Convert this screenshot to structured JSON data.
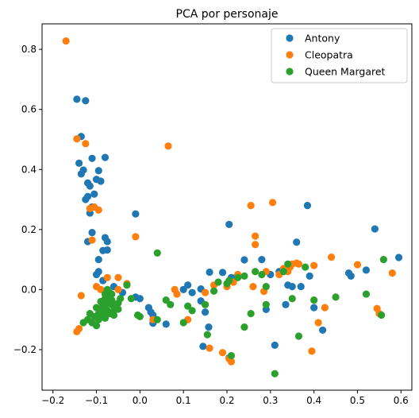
{
  "chart_data": {
    "type": "scatter",
    "title": "PCA por personaje",
    "xlabel": "",
    "ylabel": "",
    "xlim": [
      -0.225,
      0.625
    ],
    "ylim": [
      -0.335,
      0.885
    ],
    "xticks": [
      -0.2,
      -0.1,
      0.0,
      0.1,
      0.2,
      0.3,
      0.4,
      0.5,
      0.6
    ],
    "xtick_labels": [
      "−0.2",
      "−0.1",
      "0.0",
      "0.1",
      "0.2",
      "0.3",
      "0.4",
      "0.5",
      "0.6"
    ],
    "yticks": [
      -0.2,
      0.0,
      0.2,
      0.4,
      0.6,
      0.8
    ],
    "ytick_labels": [
      "−0.2",
      "0.0",
      "0.2",
      "0.4",
      "0.6",
      "0.8"
    ],
    "grid": false,
    "legend_position": "top-right",
    "series": [
      {
        "name": "Antony",
        "color": "#1f77b4",
        "points": [
          [
            -0.145,
            0.634
          ],
          [
            -0.125,
            0.629
          ],
          [
            -0.135,
            0.51
          ],
          [
            -0.14,
            0.421
          ],
          [
            -0.13,
            0.398
          ],
          [
            -0.135,
            0.385
          ],
          [
            -0.11,
            0.437
          ],
          [
            -0.095,
            0.396
          ],
          [
            -0.08,
            0.44
          ],
          [
            -0.1,
            0.367
          ],
          [
            -0.09,
            0.361
          ],
          [
            -0.12,
            0.355
          ],
          [
            -0.115,
            0.345
          ],
          [
            -0.125,
            0.3
          ],
          [
            -0.12,
            0.31
          ],
          [
            -0.105,
            0.318
          ],
          [
            -0.11,
            0.275
          ],
          [
            -0.115,
            0.255
          ],
          [
            -0.01,
            0.252
          ],
          [
            -0.11,
            0.19
          ],
          [
            -0.12,
            0.16
          ],
          [
            -0.08,
            0.173
          ],
          [
            -0.075,
            0.16
          ],
          [
            -0.085,
            0.13
          ],
          [
            -0.075,
            0.132
          ],
          [
            -0.095,
            0.1
          ],
          [
            -0.095,
            0.06
          ],
          [
            -0.1,
            0.05
          ],
          [
            -0.085,
            0.03
          ],
          [
            -0.06,
            0.01
          ],
          [
            -0.04,
            -0.01
          ],
          [
            -0.01,
            -0.025
          ],
          [
            0.0,
            -0.03
          ],
          [
            0.02,
            -0.06
          ],
          [
            0.025,
            -0.075
          ],
          [
            0.03,
            -0.085
          ],
          [
            0.03,
            -0.112
          ],
          [
            0.06,
            -0.115
          ],
          [
            0.1,
            0.0
          ],
          [
            0.11,
            0.015
          ],
          [
            0.12,
            -0.01
          ],
          [
            0.14,
            0.002
          ],
          [
            0.14,
            -0.038
          ],
          [
            0.15,
            -0.075
          ],
          [
            0.145,
            -0.189
          ],
          [
            0.158,
            -0.125
          ],
          [
            0.16,
            0.058
          ],
          [
            0.19,
            0.057
          ],
          [
            0.205,
            0.217
          ],
          [
            0.21,
            0.04
          ],
          [
            0.205,
            -0.227
          ],
          [
            0.22,
            0.04
          ],
          [
            0.24,
            0.099
          ],
          [
            0.28,
            0.1
          ],
          [
            0.29,
            -0.066
          ],
          [
            0.3,
            0.05
          ],
          [
            0.31,
            -0.185
          ],
          [
            0.32,
            0.06
          ],
          [
            0.335,
            -0.05
          ],
          [
            0.34,
            0.015
          ],
          [
            0.35,
            0.01
          ],
          [
            0.36,
            0.158
          ],
          [
            0.37,
            0.01
          ],
          [
            0.385,
            0.28
          ],
          [
            0.39,
            0.045
          ],
          [
            0.4,
            -0.06
          ],
          [
            0.42,
            -0.135
          ],
          [
            0.48,
            0.055
          ],
          [
            0.485,
            0.045
          ],
          [
            0.52,
            0.065
          ],
          [
            0.54,
            0.202
          ],
          [
            0.595,
            0.107
          ]
        ]
      },
      {
        "name": "Cleopatra",
        "color": "#ff7f0e",
        "points": [
          [
            -0.17,
            0.828
          ],
          [
            -0.145,
            0.502
          ],
          [
            -0.125,
            0.486
          ],
          [
            -0.105,
            0.275
          ],
          [
            -0.095,
            0.265
          ],
          [
            -0.115,
            0.27
          ],
          [
            -0.11,
            0.165
          ],
          [
            -0.01,
            0.176
          ],
          [
            0.065,
            0.478
          ],
          [
            -0.135,
            -0.02
          ],
          [
            -0.145,
            -0.14
          ],
          [
            -0.14,
            -0.13
          ],
          [
            -0.1,
            0.01
          ],
          [
            -0.09,
            0.0
          ],
          [
            -0.075,
            0.04
          ],
          [
            -0.05,
            0.0
          ],
          [
            -0.03,
            0.02
          ],
          [
            -0.055,
            -0.05
          ],
          [
            -0.05,
            0.04
          ],
          [
            0.03,
            -0.1
          ],
          [
            0.08,
            0.0
          ],
          [
            0.085,
            -0.015
          ],
          [
            0.11,
            -0.1
          ],
          [
            0.15,
            -0.01
          ],
          [
            0.16,
            -0.195
          ],
          [
            0.17,
            0.015
          ],
          [
            0.19,
            -0.21
          ],
          [
            0.2,
            0.01
          ],
          [
            0.205,
            -0.23
          ],
          [
            0.21,
            -0.24
          ],
          [
            0.215,
            0.025
          ],
          [
            0.225,
            0.05
          ],
          [
            0.255,
            0.28
          ],
          [
            0.26,
            0.01
          ],
          [
            0.265,
            0.178
          ],
          [
            0.265,
            0.15
          ],
          [
            0.285,
            -0.006
          ],
          [
            0.29,
            0.06
          ],
          [
            0.305,
            0.29
          ],
          [
            0.32,
            0.05
          ],
          [
            0.33,
            0.07
          ],
          [
            0.34,
            0.06
          ],
          [
            0.345,
            0.075
          ],
          [
            0.35,
            0.085
          ],
          [
            0.36,
            0.088
          ],
          [
            0.365,
            0.085
          ],
          [
            0.395,
            -0.205
          ],
          [
            0.4,
            0.08
          ],
          [
            0.41,
            -0.11
          ],
          [
            0.425,
            -0.06
          ],
          [
            0.44,
            0.108
          ],
          [
            0.5,
            0.083
          ],
          [
            0.545,
            -0.063
          ],
          [
            0.55,
            -0.08
          ],
          [
            0.58,
            0.055
          ]
        ]
      },
      {
        "name": "Queen Margaret",
        "color": "#2ca02c",
        "points": [
          [
            -0.08,
            -0.03
          ],
          [
            -0.075,
            -0.04
          ],
          [
            -0.07,
            -0.045
          ],
          [
            -0.065,
            -0.05
          ],
          [
            -0.06,
            -0.055
          ],
          [
            -0.08,
            -0.06
          ],
          [
            -0.075,
            -0.07
          ],
          [
            -0.07,
            -0.025
          ],
          [
            -0.065,
            -0.035
          ],
          [
            -0.085,
            -0.05
          ],
          [
            -0.09,
            -0.065
          ],
          [
            -0.095,
            -0.08
          ],
          [
            -0.085,
            -0.085
          ],
          [
            -0.06,
            -0.07
          ],
          [
            -0.055,
            -0.06
          ],
          [
            -0.05,
            -0.045
          ],
          [
            -0.045,
            -0.03
          ],
          [
            -0.05,
            -0.065
          ],
          [
            -0.07,
            -0.01
          ],
          [
            -0.075,
            0.0
          ],
          [
            -0.08,
            -0.015
          ],
          [
            -0.09,
            -0.04
          ],
          [
            -0.1,
            -0.06
          ],
          [
            -0.105,
            -0.09
          ],
          [
            -0.095,
            -0.1
          ],
          [
            -0.1,
            -0.12
          ],
          [
            -0.11,
            -0.11
          ],
          [
            -0.12,
            -0.1
          ],
          [
            -0.115,
            -0.08
          ],
          [
            -0.13,
            -0.11
          ],
          [
            -0.07,
            -0.08
          ],
          [
            -0.06,
            -0.085
          ],
          [
            -0.08,
            -0.095
          ],
          [
            -0.065,
            -0.015
          ],
          [
            -0.03,
            0.015
          ],
          [
            -0.02,
            -0.03
          ],
          [
            -0.005,
            -0.085
          ],
          [
            0.0,
            -0.09
          ],
          [
            0.04,
            -0.1
          ],
          [
            0.04,
            0.122
          ],
          [
            0.06,
            -0.035
          ],
          [
            0.07,
            -0.05
          ],
          [
            0.1,
            -0.11
          ],
          [
            0.11,
            -0.055
          ],
          [
            0.12,
            -0.07
          ],
          [
            0.15,
            -0.05
          ],
          [
            0.155,
            -0.15
          ],
          [
            0.17,
            -0.005
          ],
          [
            0.18,
            0.025
          ],
          [
            0.2,
            0.02
          ],
          [
            0.205,
            0.03
          ],
          [
            0.21,
            -0.22
          ],
          [
            0.225,
            0.04
          ],
          [
            0.24,
            -0.125
          ],
          [
            0.24,
            0.045
          ],
          [
            0.255,
            -0.08
          ],
          [
            0.265,
            0.06
          ],
          [
            0.28,
            0.05
          ],
          [
            0.29,
            0.01
          ],
          [
            0.29,
            -0.05
          ],
          [
            0.31,
            -0.28
          ],
          [
            0.33,
            0.06
          ],
          [
            0.34,
            0.085
          ],
          [
            0.35,
            -0.03
          ],
          [
            0.365,
            -0.155
          ],
          [
            0.38,
            0.075
          ],
          [
            0.4,
            -0.035
          ],
          [
            0.45,
            -0.025
          ],
          [
            0.52,
            -0.015
          ],
          [
            0.555,
            -0.085
          ],
          [
            0.56,
            0.1
          ]
        ]
      }
    ]
  }
}
